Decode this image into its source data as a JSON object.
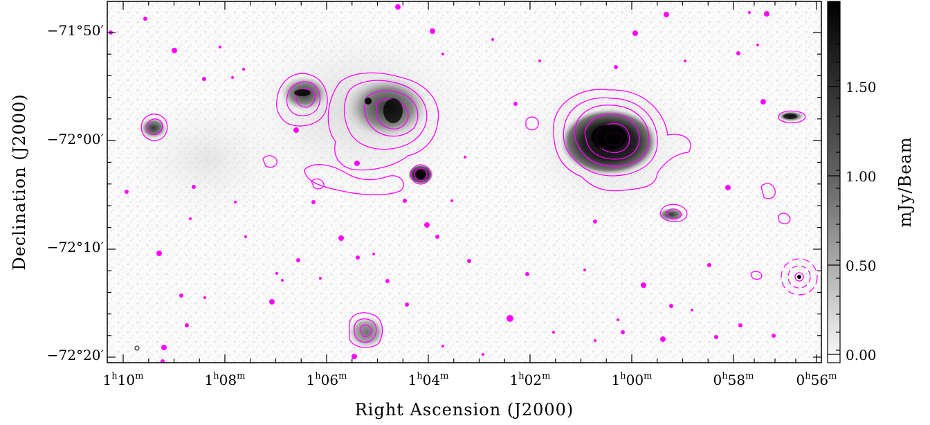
{
  "image": {
    "kind": "radio continuum image with contours",
    "x_axis_title": "Right Ascension (J2000)",
    "y_axis_title": "Declination (J2000)",
    "ra_ticks": [
      {
        "h": "1",
        "hu": "h",
        "m": "10",
        "mu": "m"
      },
      {
        "h": "1",
        "hu": "h",
        "m": "08",
        "mu": "m"
      },
      {
        "h": "1",
        "hu": "h",
        "m": "06",
        "mu": "m"
      },
      {
        "h": "1",
        "hu": "h",
        "m": "04",
        "mu": "m"
      },
      {
        "h": "1",
        "hu": "h",
        "m": "02",
        "mu": "m"
      },
      {
        "h": "1",
        "hu": "h",
        "m": "00",
        "mu": "m"
      },
      {
        "h": "0",
        "hu": "h",
        "m": "58",
        "mu": "m"
      },
      {
        "h": "0",
        "hu": "h",
        "m": "56",
        "mu": "m"
      }
    ],
    "dec_ticks": [
      "−71°50′",
      "−72°00′",
      "−72°10′",
      "−72°20′"
    ],
    "colorbar": {
      "label": "mJy/Beam",
      "ticks": [
        "1.50",
        "1.00",
        "0.50",
        "0.00"
      ]
    },
    "colors": {
      "contour": "#ff00ff",
      "background_noise": "#e8e8e8",
      "emission_dark": "#111111"
    }
  }
}
